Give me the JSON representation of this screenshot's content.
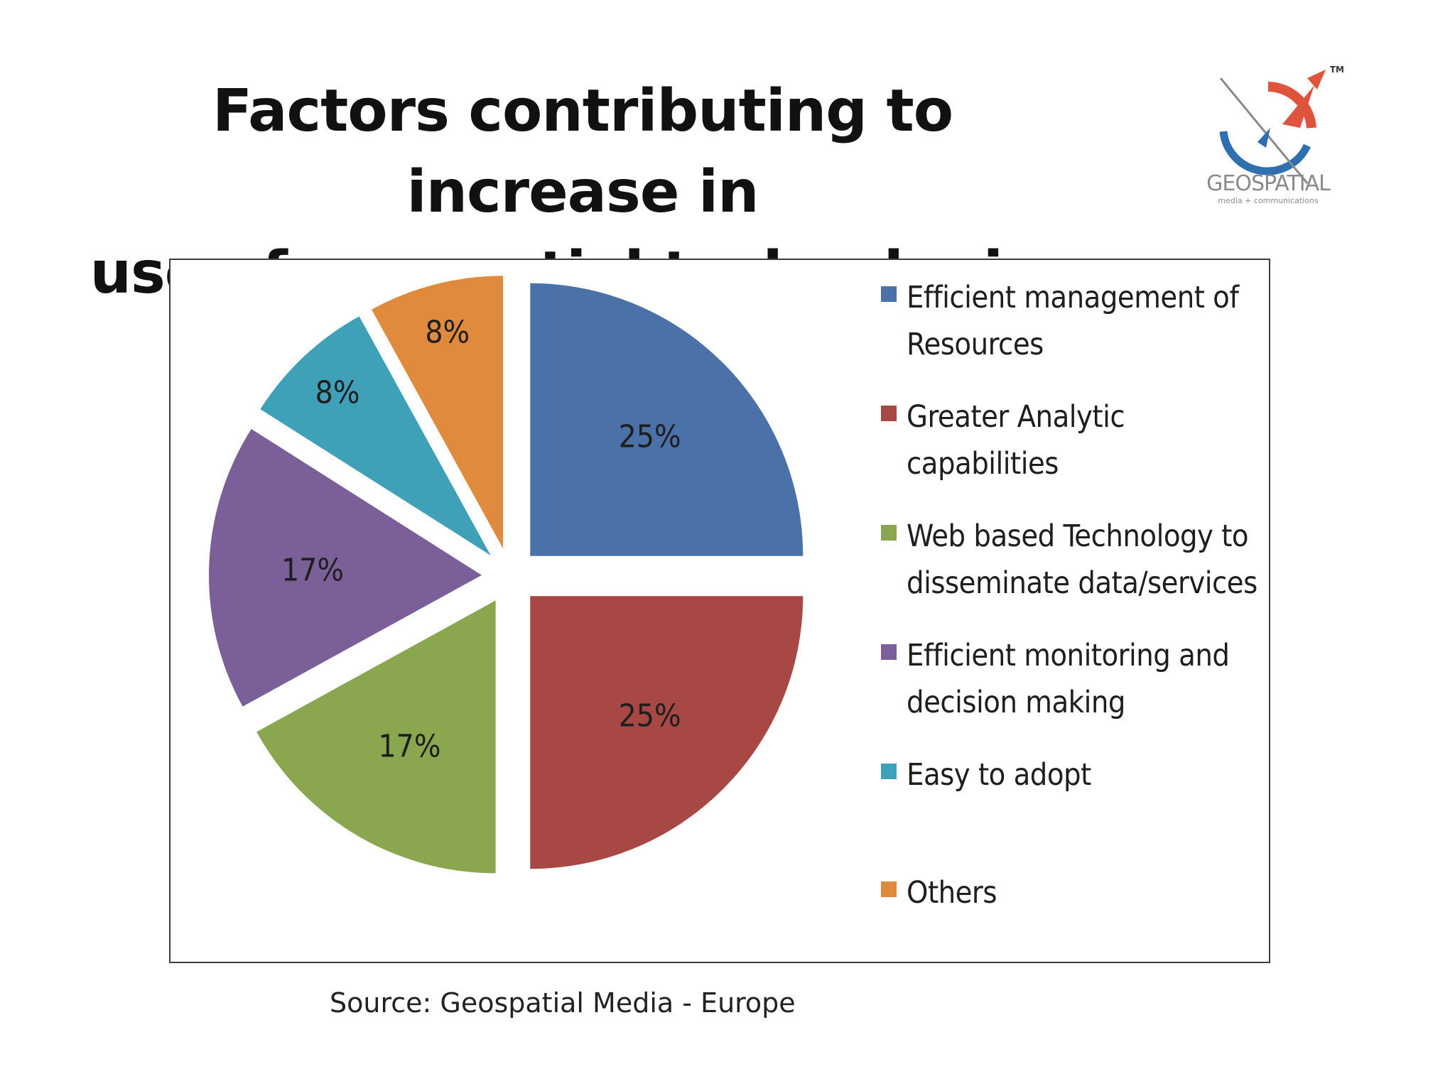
{
  "title": {
    "line1": "Factors contributing to increase in",
    "line2": "use of geospatial technologies"
  },
  "logo": {
    "icon": "geospatial-compass-logo",
    "name": "GEOSPATIAL",
    "tagline": "media + communications",
    "trademark": "TM",
    "colors": {
      "red": "#e0533d",
      "blue": "#2f6fb0",
      "grey": "#8a8a8a"
    }
  },
  "source": "Source: Geospatial Media - Europe",
  "chart_data": {
    "type": "pie",
    "title": "",
    "legend_position": "right",
    "slices": [
      {
        "label": "Efficient management of Resources",
        "value": 25,
        "display": "25%",
        "color": "#4a72a8"
      },
      {
        "label": "Greater Analytic capabilities",
        "value": 25,
        "display": "25%",
        "color": "#a84845"
      },
      {
        "label": "Web based Technology to disseminate data/services",
        "value": 17,
        "display": "17%",
        "color": "#8aa64e"
      },
      {
        "label": "Efficient monitoring and decision making",
        "value": 17,
        "display": "17%",
        "color": "#7b5f98"
      },
      {
        "label": "Easy to adopt",
        "value": 8,
        "display": "8%",
        "color": "#3fa1b8"
      },
      {
        "label": "Others",
        "value": 8,
        "display": "8%",
        "color": "#df8a3c"
      }
    ]
  }
}
